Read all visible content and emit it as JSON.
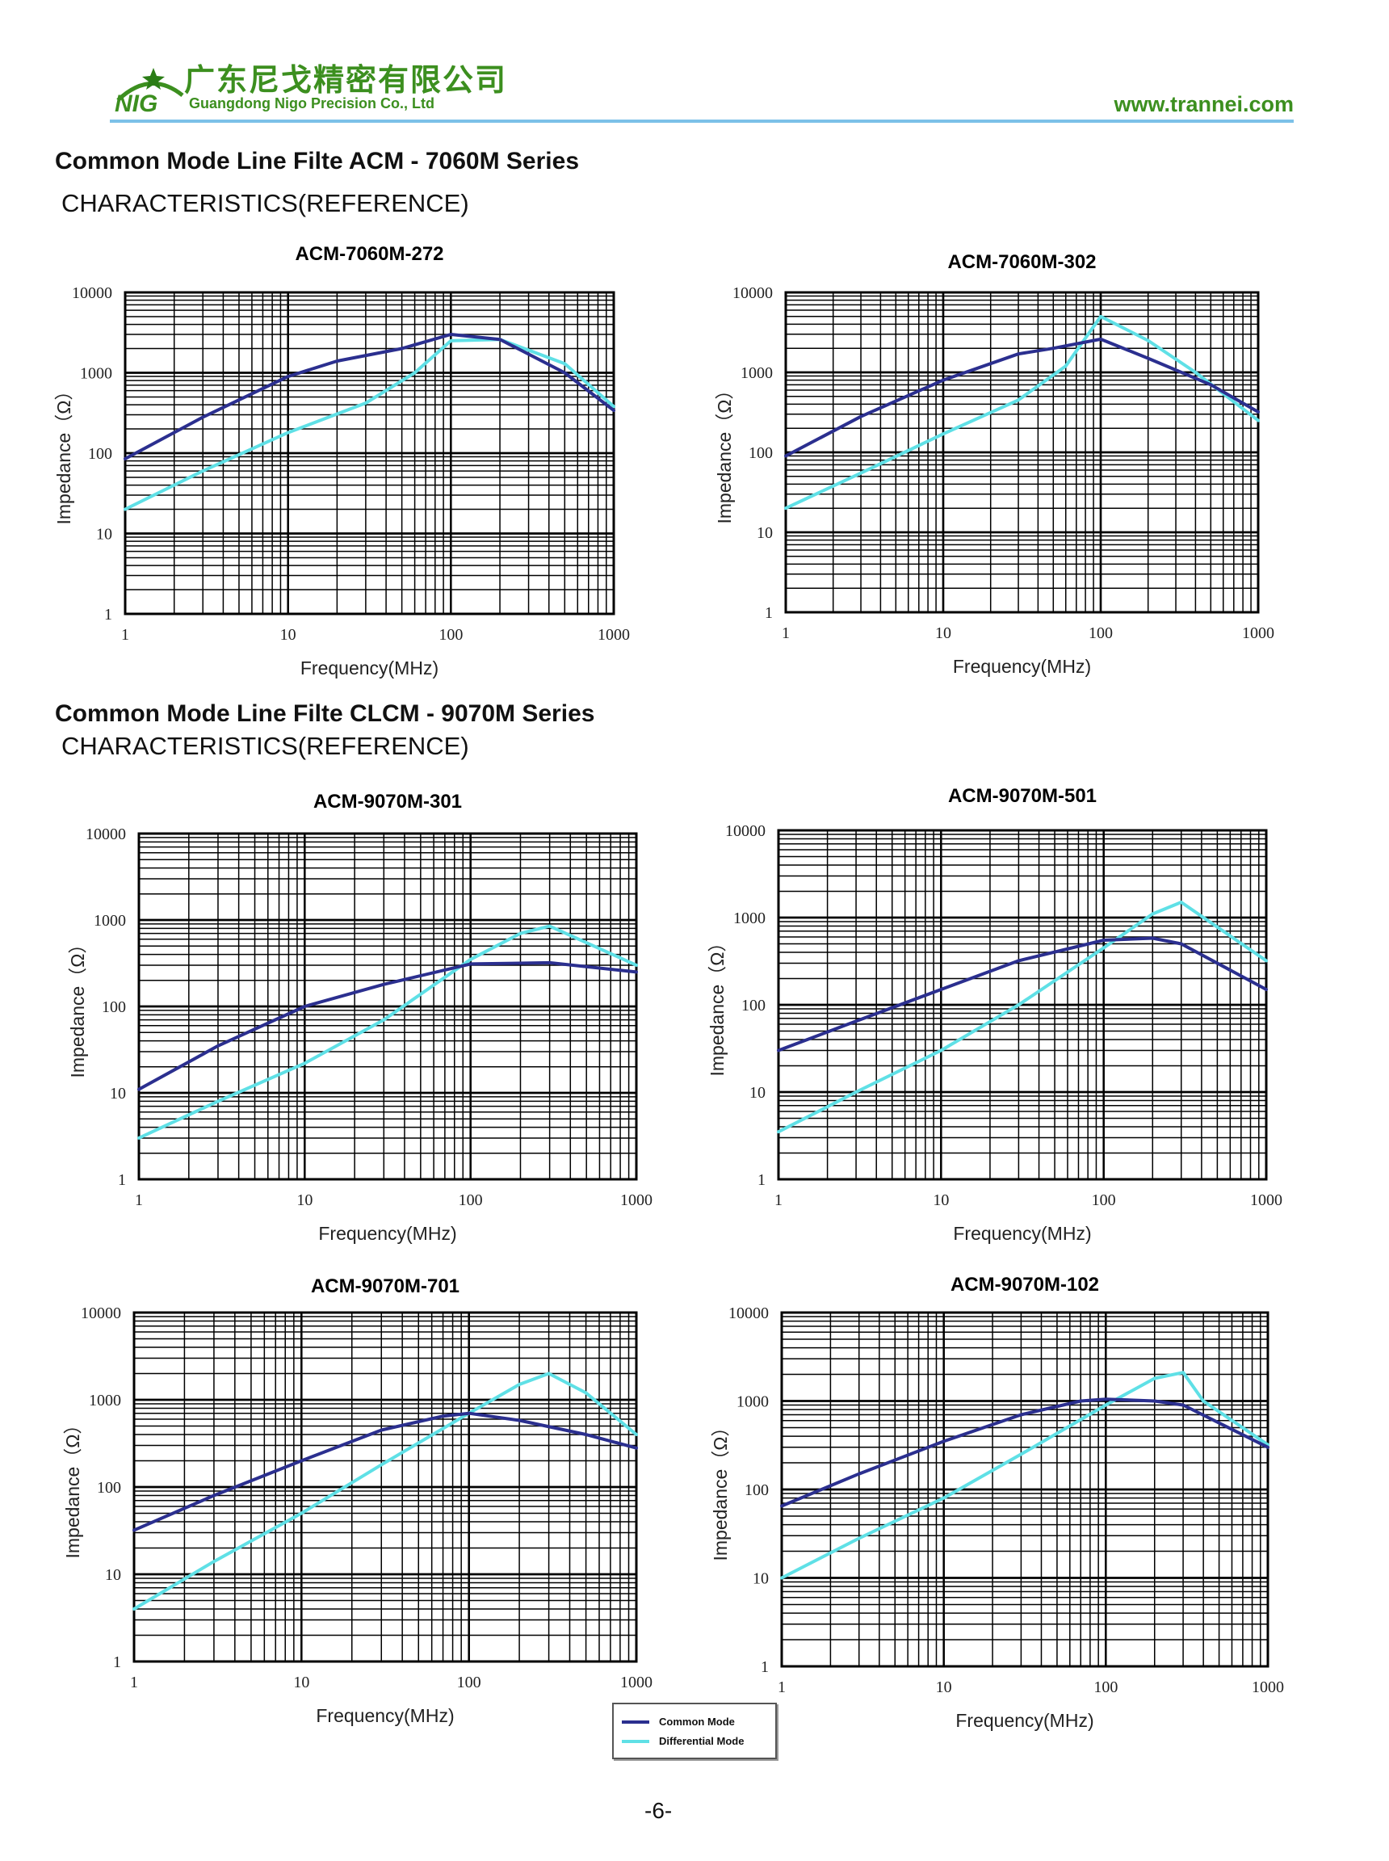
{
  "header": {
    "logo_text": "NIG",
    "company_cn": "广东尼戈精密有限公司",
    "company_en": "Guangdong Nigo Precision Co., Ltd",
    "website": "www.trannei.com"
  },
  "sections": [
    {
      "title": "Common Mode Line Filte ACM - 7060M Series",
      "subtitle": "CHARACTERISTICS(REFERENCE)"
    },
    {
      "title": "Common Mode Line Filte CLCM - 9070M Series",
      "subtitle": "CHARACTERISTICS(REFERENCE)"
    }
  ],
  "legend": {
    "items": [
      {
        "label": "Common Mode",
        "color": "#2b2f8f"
      },
      {
        "label": "Differential Mode",
        "color": "#5fe0e6"
      }
    ]
  },
  "page_number": "-6-",
  "colors": {
    "brand_green": "#3c8f1f",
    "header_rule": "#7cc1e8",
    "common_mode": "#2b2f8f",
    "differential_mode": "#5fe0e6"
  },
  "chart_data": [
    {
      "type": "line",
      "title": "ACM-7060M-272",
      "xlabel": "Frequency(MHz)",
      "ylabel": "Impedance（Ω）",
      "x_scale": "log",
      "y_scale": "log",
      "xlim": [
        1,
        1000
      ],
      "ylim": [
        1,
        10000
      ],
      "xticks": [
        "1",
        "10",
        "100",
        "1000"
      ],
      "yticks": [
        "1",
        "10",
        "100",
        "1000",
        "10000"
      ],
      "grid": true,
      "series": [
        {
          "name": "Common Mode",
          "x": [
            1,
            3,
            10,
            20,
            50,
            100,
            200,
            500,
            1000
          ],
          "y": [
            85,
            280,
            900,
            1400,
            2000,
            3000,
            2600,
            1000,
            340
          ]
        },
        {
          "name": "Differential Mode",
          "x": [
            1,
            3,
            10,
            30,
            60,
            100,
            200,
            500,
            1000
          ],
          "y": [
            20,
            60,
            180,
            420,
            1000,
            2500,
            2600,
            1300,
            380
          ]
        }
      ]
    },
    {
      "type": "line",
      "title": "ACM-7060M-302",
      "xlabel": "Frequency(MHz)",
      "ylabel": "Impedance（Ω）",
      "x_scale": "log",
      "y_scale": "log",
      "xlim": [
        1,
        1000
      ],
      "ylim": [
        1,
        10000
      ],
      "xticks": [
        "1",
        "10",
        "100",
        "1000"
      ],
      "yticks": [
        "1",
        "10",
        "100",
        "1000",
        "10000"
      ],
      "grid": true,
      "series": [
        {
          "name": "Common Mode",
          "x": [
            1,
            3,
            10,
            30,
            50,
            100,
            200,
            500,
            1000
          ],
          "y": [
            90,
            280,
            800,
            1700,
            2000,
            2600,
            1500,
            700,
            320
          ]
        },
        {
          "name": "Differential Mode",
          "x": [
            1,
            3,
            10,
            30,
            60,
            100,
            200,
            400,
            1000
          ],
          "y": [
            20,
            55,
            170,
            450,
            1200,
            5000,
            2500,
            1000,
            250
          ]
        }
      ]
    },
    {
      "type": "line",
      "title": "ACM-9070M-301",
      "xlabel": "Frequency(MHz)",
      "ylabel": "Impedance（Ω）",
      "x_scale": "log",
      "y_scale": "log",
      "xlim": [
        1,
        1000
      ],
      "ylim": [
        1,
        10000
      ],
      "xticks": [
        "1",
        "10",
        "100",
        "1000"
      ],
      "yticks": [
        "1",
        "10",
        "100",
        "1000",
        "10000"
      ],
      "grid": true,
      "series": [
        {
          "name": "Common Mode",
          "x": [
            1,
            3,
            10,
            30,
            100,
            300,
            1000
          ],
          "y": [
            11,
            35,
            100,
            180,
            310,
            320,
            250
          ]
        },
        {
          "name": "Differential Mode",
          "x": [
            1,
            3,
            10,
            30,
            100,
            200,
            300,
            1000
          ],
          "y": [
            3,
            8,
            22,
            70,
            350,
            700,
            850,
            300
          ]
        }
      ]
    },
    {
      "type": "line",
      "title": "ACM-9070M-501",
      "xlabel": "Frequency(MHz)",
      "ylabel": "Impedance（Ω）",
      "x_scale": "log",
      "y_scale": "log",
      "xlim": [
        1,
        1000
      ],
      "ylim": [
        1,
        10000
      ],
      "xticks": [
        "1",
        "10",
        "100",
        "1000"
      ],
      "yticks": [
        "1",
        "10",
        "100",
        "1000",
        "10000"
      ],
      "grid": true,
      "series": [
        {
          "name": "Common Mode",
          "x": [
            1,
            3,
            10,
            30,
            100,
            200,
            300,
            1000
          ],
          "y": [
            30,
            65,
            150,
            320,
            550,
            580,
            500,
            150
          ]
        },
        {
          "name": "Differential Mode",
          "x": [
            1,
            3,
            10,
            30,
            100,
            200,
            300,
            1000
          ],
          "y": [
            3.5,
            10,
            30,
            100,
            450,
            1100,
            1500,
            320
          ]
        }
      ]
    },
    {
      "type": "line",
      "title": "ACM-9070M-701",
      "xlabel": "Frequency(MHz)",
      "ylabel": "Impedance（Ω）",
      "x_scale": "log",
      "y_scale": "log",
      "xlim": [
        1,
        1000
      ],
      "ylim": [
        1,
        10000
      ],
      "xticks": [
        "1",
        "10",
        "100",
        "1000"
      ],
      "yticks": [
        "1",
        "10",
        "100",
        "1000",
        "10000"
      ],
      "grid": true,
      "series": [
        {
          "name": "Common Mode",
          "x": [
            1,
            3,
            10,
            30,
            70,
            100,
            200,
            500,
            1000
          ],
          "y": [
            32,
            80,
            200,
            450,
            650,
            700,
            580,
            400,
            280
          ]
        },
        {
          "name": "Differential Mode",
          "x": [
            1,
            3,
            10,
            30,
            100,
            200,
            300,
            500,
            1000
          ],
          "y": [
            4,
            14,
            50,
            180,
            700,
            1500,
            2000,
            1200,
            400
          ]
        }
      ]
    },
    {
      "type": "line",
      "title": "ACM-9070M-102",
      "xlabel": "Frequency(MHz)",
      "ylabel": "Impedance（Ω）",
      "x_scale": "log",
      "y_scale": "log",
      "xlim": [
        1,
        1000
      ],
      "ylim": [
        1,
        10000
      ],
      "xticks": [
        "1",
        "10",
        "100",
        "1000"
      ],
      "yticks": [
        "1",
        "10",
        "100",
        "1000",
        "10000"
      ],
      "grid": true,
      "series": [
        {
          "name": "Common Mode",
          "x": [
            1,
            3,
            10,
            30,
            70,
            100,
            200,
            300,
            1000
          ],
          "y": [
            65,
            150,
            350,
            700,
            1000,
            1050,
            1000,
            900,
            300
          ]
        },
        {
          "name": "Differential Mode",
          "x": [
            1,
            3,
            10,
            30,
            100,
            200,
            300,
            400,
            1000
          ],
          "y": [
            10,
            28,
            80,
            250,
            900,
            1800,
            2100,
            1000,
            320
          ]
        }
      ]
    }
  ]
}
